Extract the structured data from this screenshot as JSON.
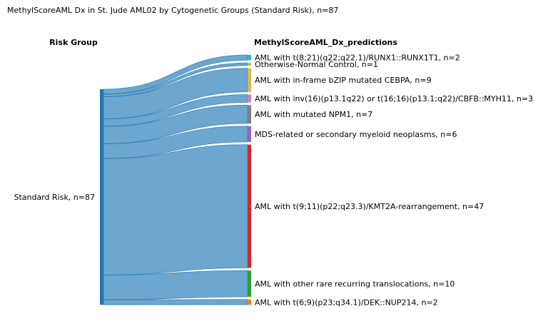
{
  "chart_data": {
    "type": "sankey",
    "title": "MethylScoreAML Dx in St. Jude AML02 by Cytogenetic Groups (Standard Risk), n=87",
    "left_header": "Risk Group",
    "right_header": "MethylScoreAML_Dx_predictions",
    "source": {
      "label": "Standard Risk, n=87",
      "value": 87,
      "color": "#1f77b4"
    },
    "link_color": "#1f77b4",
    "targets": [
      {
        "label": "AML with t(8;21)(q22;q22.1)/RUNX1::RUNX1T1, n=2",
        "value": 2,
        "color": "#17becf"
      },
      {
        "label": "Otherwise-Normal Control, n=1",
        "value": 1,
        "color": "#bcbd22"
      },
      {
        "label": "AML with in-frame bZIP mutated CEBPA, n=9",
        "value": 9,
        "color": "#dbb84a"
      },
      {
        "label": "AML with inv(16)(p13.1q22) or t(16;16)(p13.1;q22)/CBFB::MYH11, n=3",
        "value": 3,
        "color": "#e377c2"
      },
      {
        "label": "AML with mutated NPM1, n=7",
        "value": 7,
        "color": "#7f7f7f"
      },
      {
        "label": "MDS-related or secondary myeloid neoplasms, n=6",
        "value": 6,
        "color": "#9467bd"
      },
      {
        "label": "AML with t(9;11)(p22;q23.3)/KMT2A-rearrangement, n=47",
        "value": 47,
        "color": "#d62728"
      },
      {
        "label": "AML with other rare recurring translocations, n=10",
        "value": 10,
        "color": "#2ca02c"
      },
      {
        "label": "AML with t(6;9)(p23;q34.1)/DEK::NUP214, n=2",
        "value": 2,
        "color": "#ff7f0e"
      }
    ]
  }
}
